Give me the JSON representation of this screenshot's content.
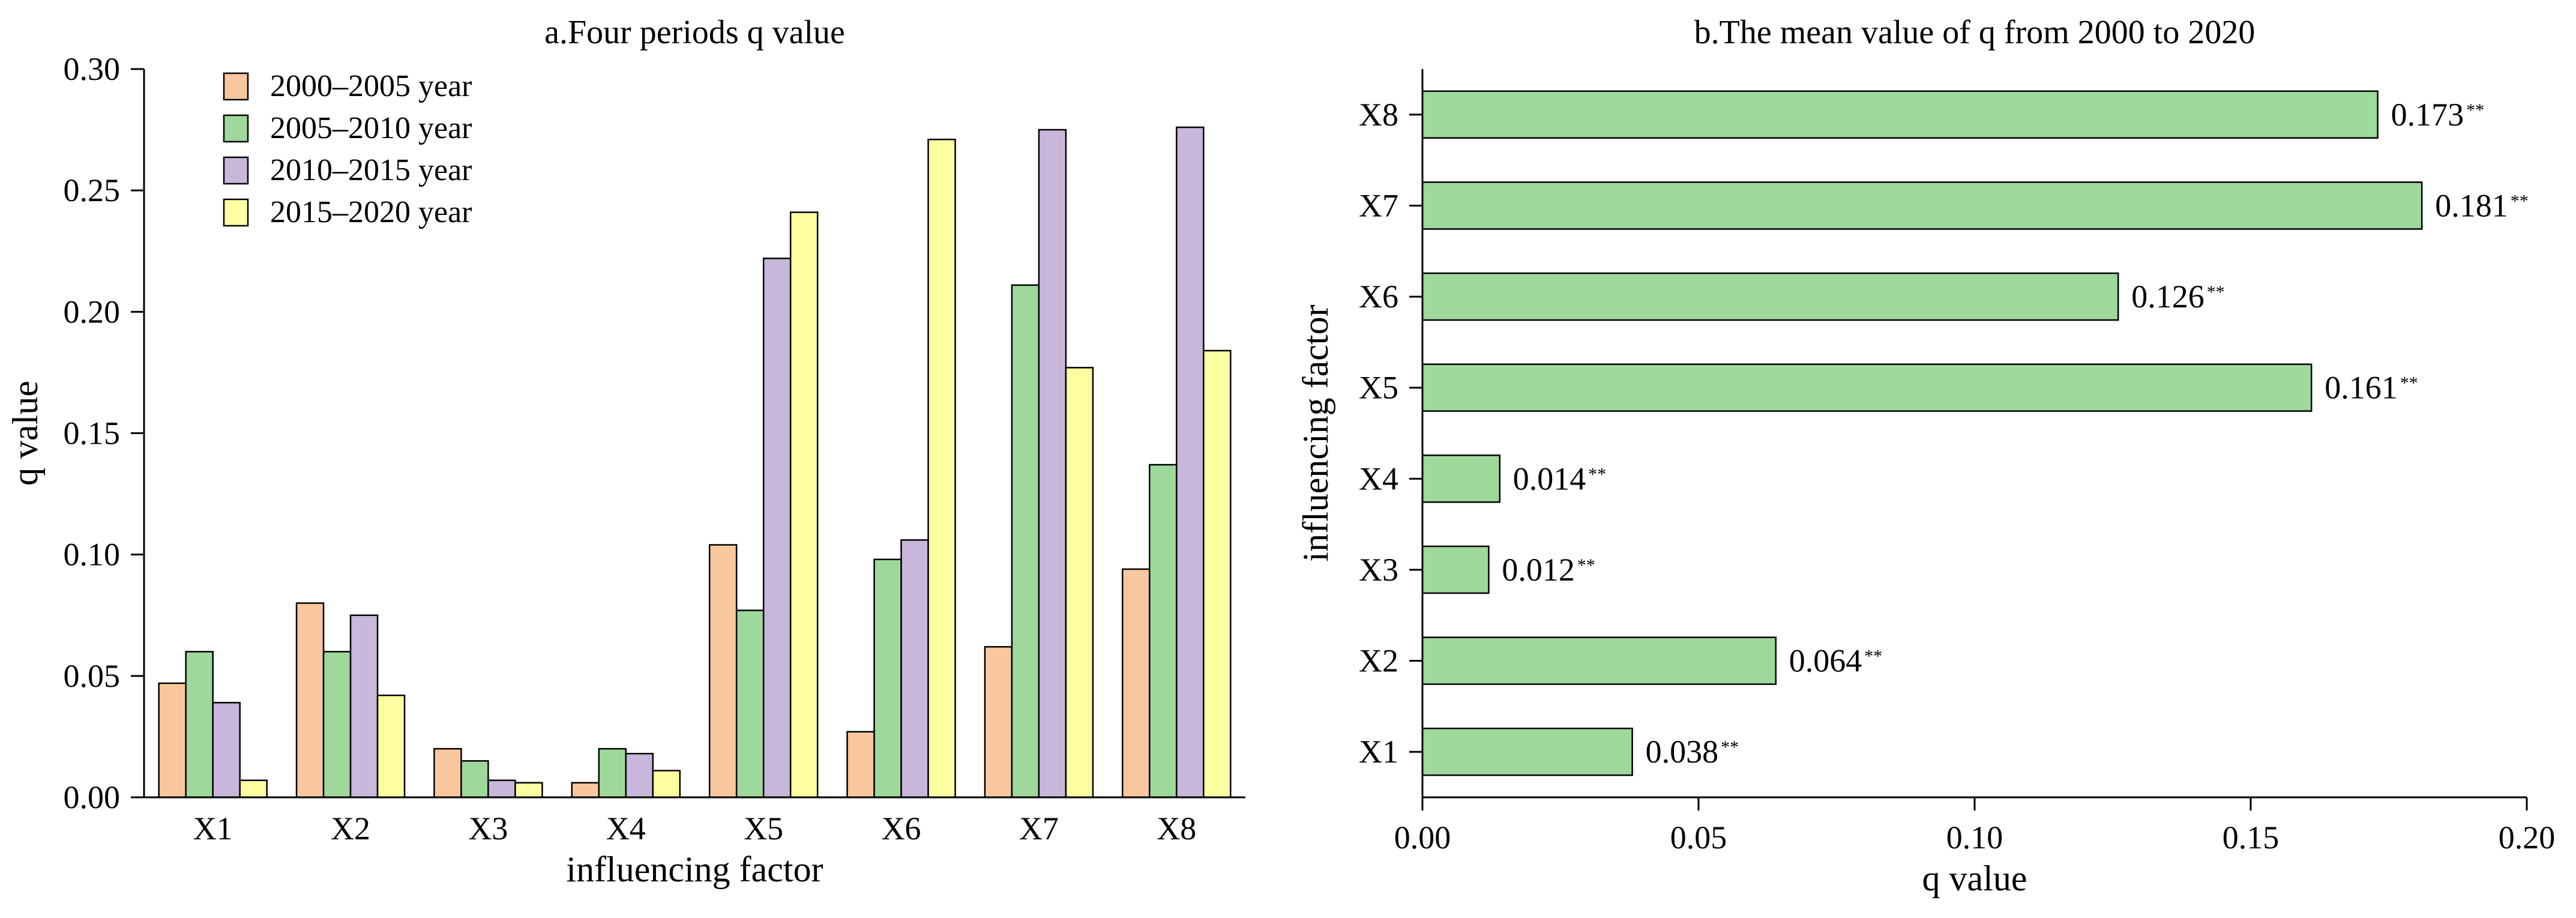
{
  "chart_data": [
    {
      "type": "bar",
      "title": "a.Four periods q value",
      "xlabel": "influencing factor",
      "ylabel": "q value",
      "categories": [
        "X1",
        "X2",
        "X3",
        "X4",
        "X5",
        "X6",
        "X7",
        "X8"
      ],
      "ylim": [
        0,
        0.3
      ],
      "yticks": [
        "0.00",
        "0.05",
        "0.10",
        "0.15",
        "0.20",
        "0.25",
        "0.30"
      ],
      "legend_position": "top-left",
      "series": [
        {
          "name": "2000–2005 year",
          "color": "#F9C79D",
          "values": [
            0.047,
            0.08,
            0.02,
            0.006,
            0.104,
            0.027,
            0.062,
            0.094
          ]
        },
        {
          "name": "2005–2010 year",
          "color": "#9ED89A",
          "values": [
            0.06,
            0.06,
            0.015,
            0.02,
            0.077,
            0.098,
            0.211,
            0.137
          ]
        },
        {
          "name": "2010–2015 year",
          "color": "#C8B7DA",
          "values": [
            0.039,
            0.075,
            0.007,
            0.018,
            0.222,
            0.106,
            0.275,
            0.276
          ]
        },
        {
          "name": "2015–2020 year",
          "color": "#FEFFA0",
          "values": [
            0.007,
            0.042,
            0.006,
            0.011,
            0.241,
            0.271,
            0.177,
            0.184
          ]
        }
      ]
    },
    {
      "type": "bar",
      "orientation": "horizontal",
      "title": "b.The mean value of q from 2000 to 2020",
      "xlabel": "q value",
      "ylabel": "influencing factor",
      "categories": [
        "X1",
        "X2",
        "X3",
        "X4",
        "X5",
        "X6",
        "X7",
        "X8"
      ],
      "values": [
        0.038,
        0.064,
        0.012,
        0.014,
        0.161,
        0.126,
        0.181,
        0.173
      ],
      "labels": [
        "0.038",
        "0.064",
        "0.012",
        "0.014",
        "0.161",
        "0.126",
        "0.181",
        "0.173"
      ],
      "significance": "**",
      "color": "#9ED89A",
      "xlim": [
        0,
        0.2
      ],
      "xticks": [
        "0.00",
        "0.05",
        "0.10",
        "0.15",
        "0.20"
      ]
    }
  ]
}
